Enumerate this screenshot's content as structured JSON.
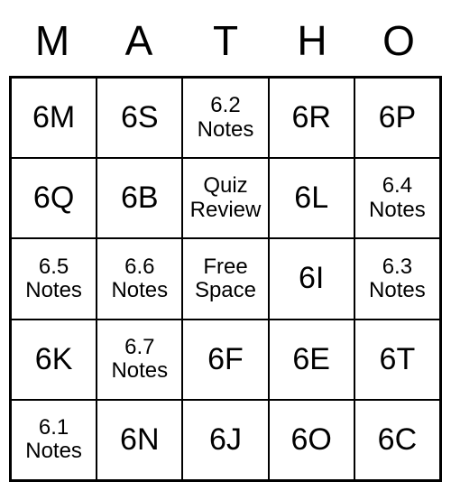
{
  "bingo": {
    "type": "bingo-grid",
    "headers": [
      "M",
      "A",
      "T",
      "H",
      "O"
    ],
    "grid_size": 5,
    "header_fontsize": 46,
    "short_cell_fontsize": 34,
    "long_cell_fontsize": 24,
    "border_color": "#000000",
    "background_color": "#ffffff",
    "text_color": "#000000",
    "rows": [
      [
        {
          "label": "6M",
          "style": "short"
        },
        {
          "label": "6S",
          "style": "short"
        },
        {
          "label": "6.2 Notes",
          "style": "long"
        },
        {
          "label": "6R",
          "style": "short"
        },
        {
          "label": "6P",
          "style": "short"
        }
      ],
      [
        {
          "label": "6Q",
          "style": "short"
        },
        {
          "label": "6B",
          "style": "short"
        },
        {
          "label": "Quiz Review",
          "style": "long"
        },
        {
          "label": "6L",
          "style": "short"
        },
        {
          "label": "6.4 Notes",
          "style": "long"
        }
      ],
      [
        {
          "label": "6.5 Notes",
          "style": "long"
        },
        {
          "label": "6.6 Notes",
          "style": "long"
        },
        {
          "label": "Free Space",
          "style": "long"
        },
        {
          "label": "6I",
          "style": "short"
        },
        {
          "label": "6.3 Notes",
          "style": "long"
        }
      ],
      [
        {
          "label": "6K",
          "style": "short"
        },
        {
          "label": "6.7 Notes",
          "style": "long"
        },
        {
          "label": "6F",
          "style": "short"
        },
        {
          "label": "6E",
          "style": "short"
        },
        {
          "label": "6T",
          "style": "short"
        }
      ],
      [
        {
          "label": "6.1 Notes",
          "style": "long"
        },
        {
          "label": "6N",
          "style": "short"
        },
        {
          "label": "6J",
          "style": "short"
        },
        {
          "label": "6O",
          "style": "short"
        },
        {
          "label": "6C",
          "style": "short"
        }
      ]
    ]
  }
}
